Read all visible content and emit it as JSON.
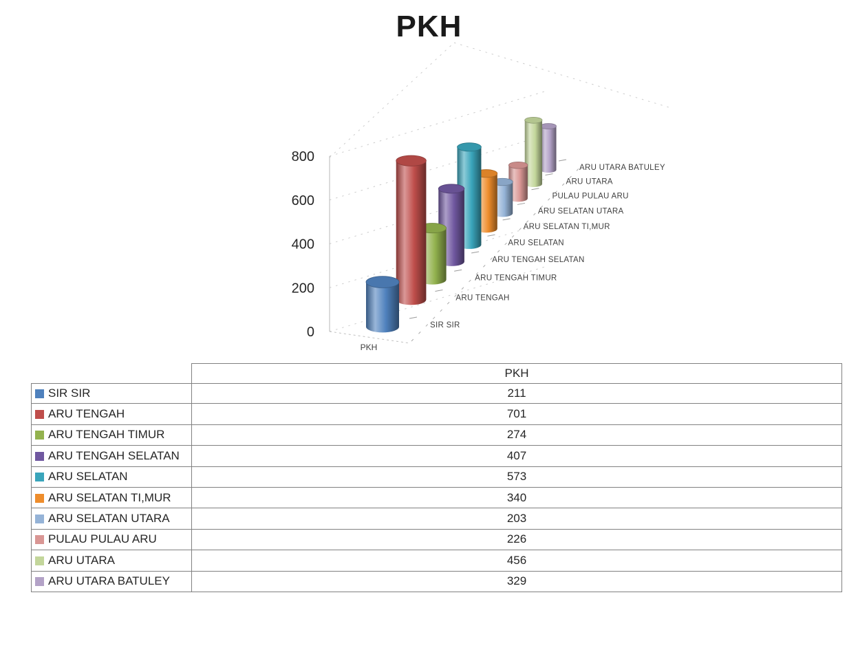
{
  "title": "PKH",
  "chart_data": {
    "type": "bar",
    "variant": "3d-cylinder-perspective",
    "title": "PKH",
    "series_axis_label": "PKH",
    "categories": [
      "SIR SIR",
      "ARU TENGAH",
      "ARU TENGAH TIMUR",
      "ARU TENGAH SELATAN",
      "ARU SELATAN",
      "ARU SELATAN TI,MUR",
      "ARU SELATAN UTARA",
      "PULAU PULAU ARU",
      "ARU UTARA",
      "ARU UTARA BATULEY"
    ],
    "values": [
      211,
      701,
      274,
      407,
      573,
      340,
      203,
      226,
      456,
      329
    ],
    "colors": [
      "#4F81BD",
      "#BF4E4B",
      "#93B24E",
      "#7058A0",
      "#3AA5BB",
      "#EE8D2C",
      "#95B3D7",
      "#D99694",
      "#C3D69B",
      "#B3A2C7"
    ],
    "y_axis": {
      "min": 0,
      "max": 800,
      "tick_step": 200,
      "ticks": [
        0,
        200,
        400,
        600,
        800
      ]
    },
    "grid": "dashed-wall-gridlines",
    "legend_position": "table-below-left"
  },
  "table": {
    "value_column_header": "PKH",
    "rows": [
      {
        "label": "SIR SIR",
        "value": "211"
      },
      {
        "label": "ARU TENGAH",
        "value": "701"
      },
      {
        "label": "ARU TENGAH TIMUR",
        "value": "274"
      },
      {
        "label": "ARU TENGAH SELATAN",
        "value": "407"
      },
      {
        "label": "ARU SELATAN",
        "value": "573"
      },
      {
        "label": "ARU SELATAN TI,MUR",
        "value": "340"
      },
      {
        "label": "ARU SELATAN UTARA",
        "value": "203"
      },
      {
        "label": "PULAU PULAU ARU",
        "value": "226"
      },
      {
        "label": "ARU UTARA",
        "value": "456"
      },
      {
        "label": "ARU UTARA BATULEY",
        "value": "329"
      }
    ]
  }
}
